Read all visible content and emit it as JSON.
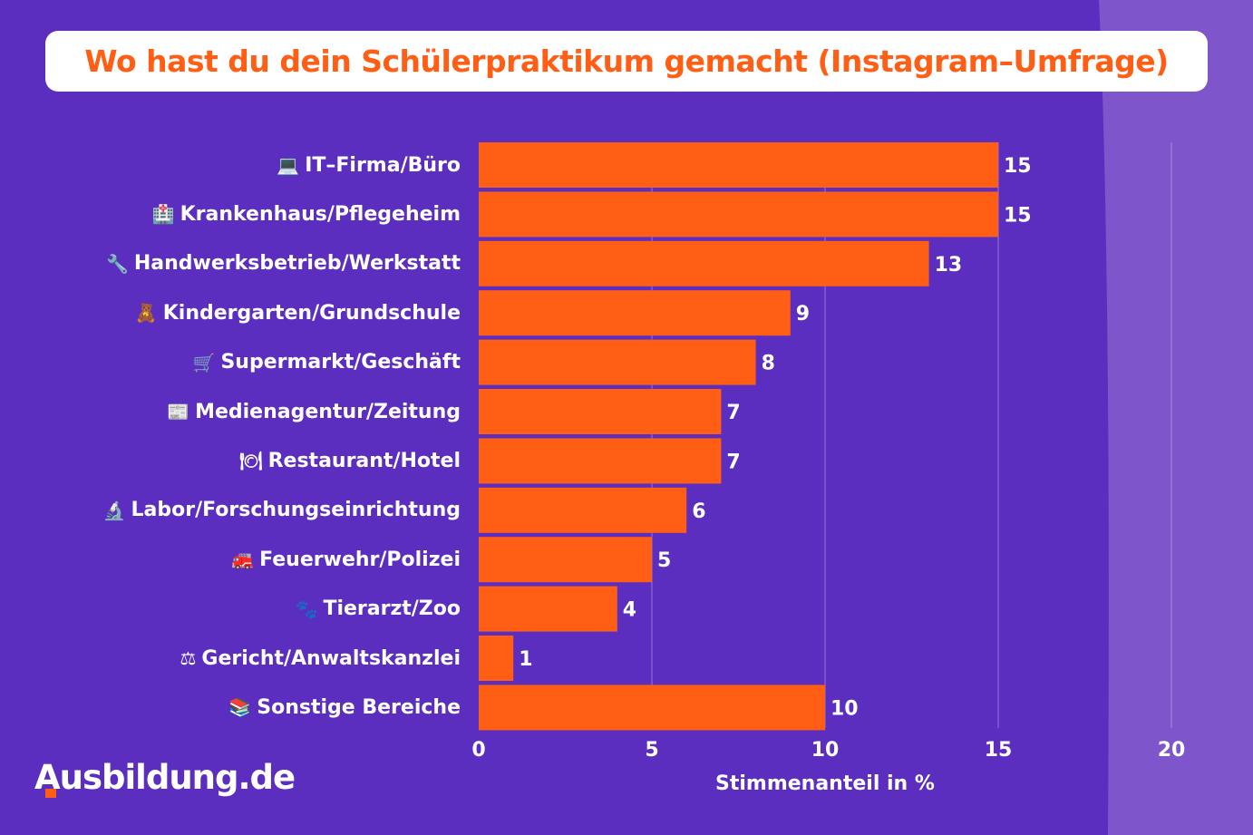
{
  "colors": {
    "background": "#5b2ebf",
    "background_right": "#7f55cb",
    "bar": "#ff5e14",
    "title": "#ff5e14",
    "text": "#ffffff"
  },
  "brand": {
    "logo_text": "Ausbildung.de"
  },
  "chart_data": {
    "type": "bar",
    "orientation": "horizontal",
    "title": "Wo hast du dein Schülerpraktikum gemacht (Instagram–Umfrage)",
    "xlabel": "Stimmenanteil in %",
    "ylabel": "",
    "xlim": [
      0,
      20
    ],
    "xticks": [
      "0",
      "5",
      "10",
      "15",
      "20"
    ],
    "grid": true,
    "categories": [
      "IT–Firma/Büro",
      "Krankenhaus/Pflegeheim",
      "Handwerksbetrieb/Werkstatt",
      "Kindergarten/Grundschule",
      "Supermarkt/Geschäft",
      "Medienagentur/Zeitung",
      "Restaurant/Hotel",
      "Labor/Forschungseinrichtung",
      "Feuerwehr/Polizei",
      "Tierarzt/Zoo",
      "Gericht/Anwaltskanzlei",
      "Sonstige Bereiche"
    ],
    "icons": [
      "laptop-icon",
      "hospital-icon",
      "wrench-icon",
      "teddy-bear-icon",
      "shopping-cart-icon",
      "newspaper-icon",
      "plate-cutlery-icon",
      "microscope-icon",
      "fire-engine-icon",
      "paw-prints-icon",
      "scales-icon",
      "books-icon"
    ],
    "values": [
      15,
      15,
      13,
      9,
      8,
      7,
      7,
      6,
      5,
      4,
      1,
      10
    ]
  }
}
